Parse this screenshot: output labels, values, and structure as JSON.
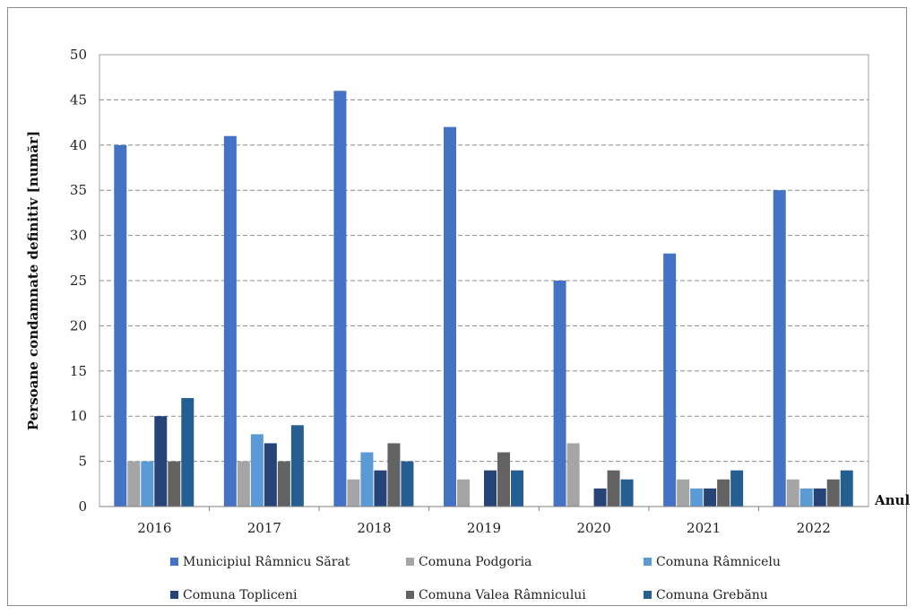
{
  "chart_data": {
    "type": "bar",
    "title": "",
    "xlabel": "Anul",
    "ylabel": "Persoane condamnate definitiv [număr]",
    "ylim": [
      0,
      50
    ],
    "yticks": [
      "0",
      "5",
      "10",
      "15",
      "20",
      "25",
      "30",
      "35",
      "40",
      "45",
      "50"
    ],
    "grid": true,
    "legend_position": "bottom",
    "categories": [
      "2016",
      "2017",
      "2018",
      "2019",
      "2020",
      "2021",
      "2022"
    ],
    "series": [
      {
        "name": "Municipiul Râmnicu Sărat",
        "color": "#4472c4",
        "values": [
          40,
          41,
          46,
          42,
          25,
          28,
          35
        ]
      },
      {
        "name": "Comuna Podgoria",
        "color": "#a5a5a5",
        "values": [
          5,
          5,
          3,
          3,
          7,
          3,
          3
        ]
      },
      {
        "name": "Comuna Râmnicelu",
        "color": "#5b9bd5",
        "values": [
          5,
          8,
          6,
          0,
          0,
          2,
          2
        ]
      },
      {
        "name": "Comuna Topliceni",
        "color": "#264478",
        "values": [
          10,
          7,
          4,
          4,
          2,
          2,
          2
        ]
      },
      {
        "name": "Comuna Valea Râmnicului",
        "color": "#636363",
        "values": [
          5,
          5,
          7,
          6,
          4,
          3,
          3
        ]
      },
      {
        "name": "Comuna Grebănu",
        "color": "#255e91",
        "values": [
          12,
          9,
          5,
          4,
          3,
          4,
          4
        ]
      }
    ]
  }
}
